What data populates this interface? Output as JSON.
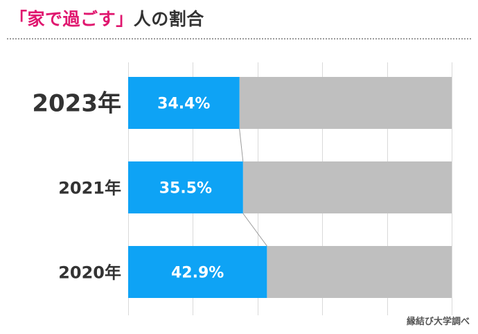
{
  "title": {
    "highlight": "「家で過ごす」",
    "rest": "人の割合"
  },
  "source": "縁結び大学調べ",
  "colors": {
    "accent": "#e0176f",
    "bar": "#0ea3f5",
    "remainder": "#bfbfbf",
    "text": "#333333"
  },
  "chart_data": {
    "type": "bar",
    "orientation": "horizontal",
    "stacked": true,
    "categories": [
      "2023年",
      "2021年",
      "2020年"
    ],
    "values": [
      34.4,
      35.5,
      42.9
    ],
    "value_labels": [
      "34.4%",
      "35.5%",
      "42.9%"
    ],
    "unit": "%",
    "xlim": [
      0,
      100
    ],
    "grid": true
  }
}
